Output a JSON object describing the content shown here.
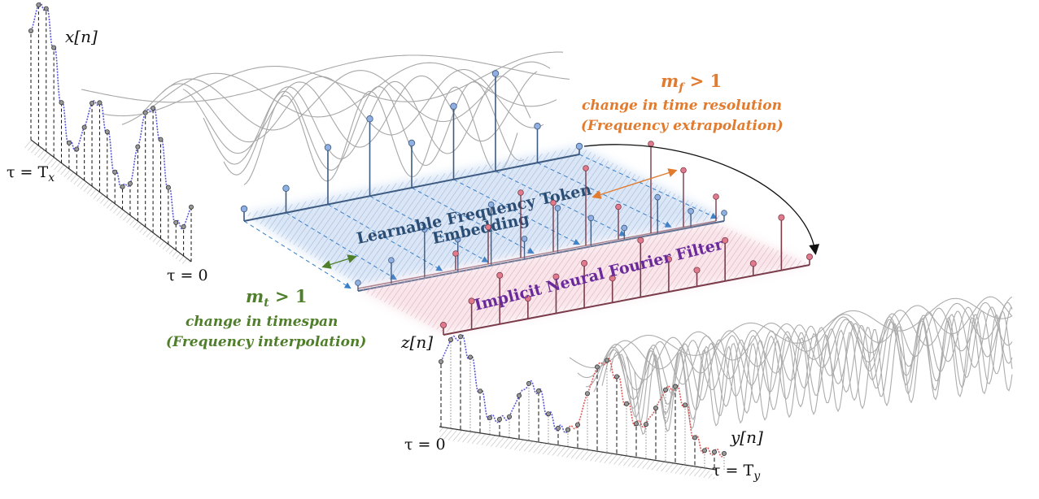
{
  "labels": {
    "x_signal": "x[n]",
    "z_signal": "z[n]",
    "y_signal": "y[n]",
    "tau_tx": "τ = T",
    "tau_tx_sub": "x",
    "tau_zero_left": "τ = 0",
    "tau_zero_right": "τ = 0",
    "tau_ty": "τ = T",
    "tau_ty_sub": "y"
  },
  "top_annotation": {
    "symbol": "m",
    "symbol_sub": "f",
    "relation": " > 1",
    "line1": "change in time resolution",
    "line2": "(Frequency extrapolation)"
  },
  "left_annotation": {
    "symbol": "m",
    "symbol_sub": "t",
    "relation": " > 1",
    "line1": "change in timespan",
    "line2": "(Frequency interpolation)"
  },
  "planes": {
    "embedding_label_line1": "Learnable Frequency Token",
    "embedding_label_line2": "Embedding",
    "filter_label": "Implicit Neural Fourier Filter"
  },
  "colors": {
    "blue_stem": "#3d5a80",
    "blue_dot": "#8fb0e0",
    "red_stem": "#7a3b4a",
    "red_dot": "#e07a8c",
    "orange": "#e07b2f",
    "green": "#4f7f2a",
    "purple": "#6a2a9a",
    "blue_wave": "#5a5ad8",
    "red_wave": "#e05a5a"
  }
}
